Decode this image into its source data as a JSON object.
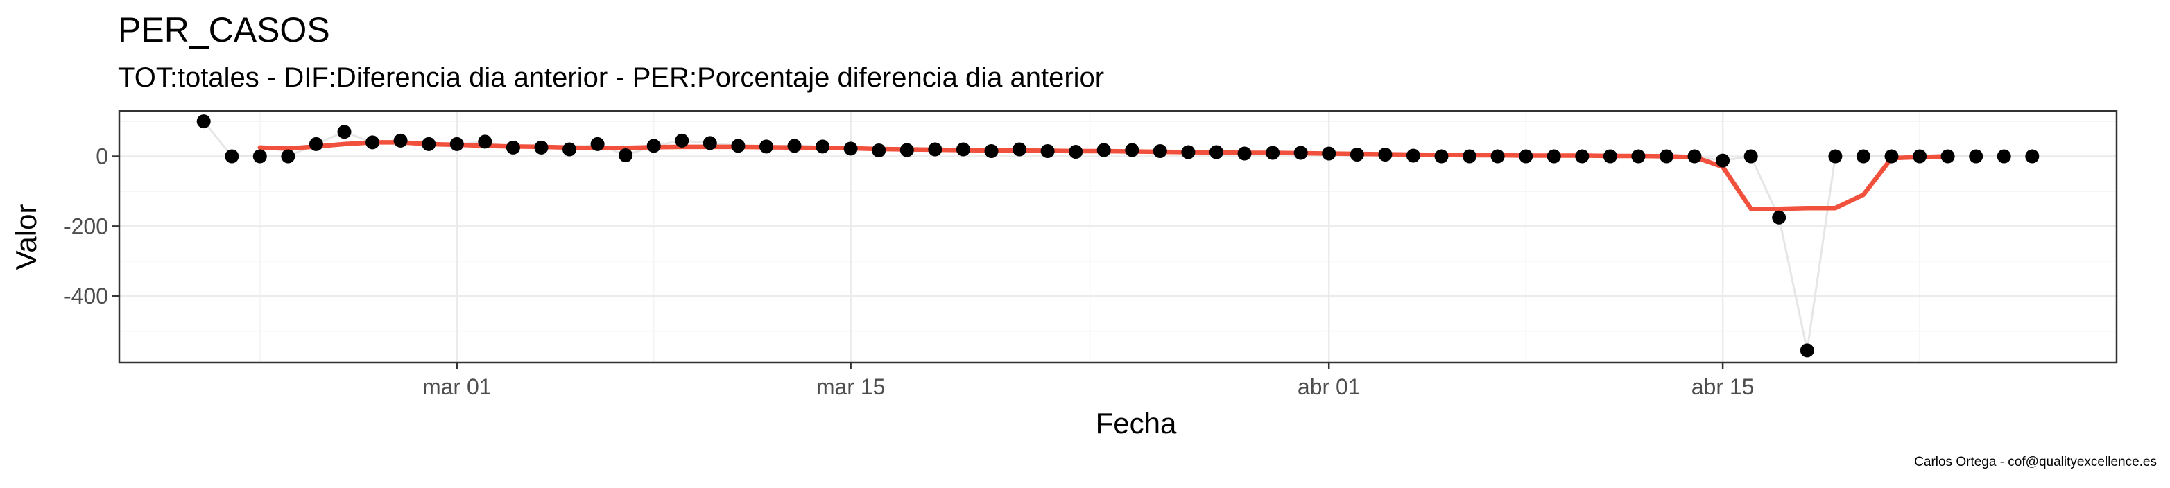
{
  "chart_data": {
    "type": "line",
    "title": "PER_CASOS",
    "subtitle": "TOT:totales - DIF:Diferencia dia anterior - PER:Porcentaje diferencia dia anterior",
    "xlabel": "Fecha",
    "ylabel": "Valor",
    "caption": "Carlos Ortega - cof@qualityexcellence.es",
    "xlim": [
      "2020-02-18",
      "2020-04-29"
    ],
    "ylim": [
      -590,
      130
    ],
    "x_ticks": [
      {
        "date": "2020-03-01",
        "label": "mar 01"
      },
      {
        "date": "2020-03-15",
        "label": "mar 15"
      },
      {
        "date": "2020-04-01",
        "label": "abr 01"
      },
      {
        "date": "2020-04-15",
        "label": "abr 15"
      }
    ],
    "y_ticks": [
      {
        "value": 0,
        "label": "0"
      },
      {
        "value": -200,
        "label": "-200"
      },
      {
        "value": -400,
        "label": "-400"
      }
    ],
    "grid": true,
    "colors": {
      "points": "#000000",
      "connector": "#e6e6e6",
      "smooth": "#f0503c"
    },
    "series": [
      {
        "style": "points",
        "x": [
          "2020-02-21",
          "2020-02-22",
          "2020-02-23",
          "2020-02-24",
          "2020-02-25",
          "2020-02-26",
          "2020-02-27",
          "2020-02-28",
          "2020-02-29",
          "2020-03-01",
          "2020-03-02",
          "2020-03-03",
          "2020-03-04",
          "2020-03-05",
          "2020-03-06",
          "2020-03-07",
          "2020-03-08",
          "2020-03-09",
          "2020-03-10",
          "2020-03-11",
          "2020-03-12",
          "2020-03-13",
          "2020-03-14",
          "2020-03-15",
          "2020-03-16",
          "2020-03-17",
          "2020-03-18",
          "2020-03-19",
          "2020-03-20",
          "2020-03-21",
          "2020-03-22",
          "2020-03-23",
          "2020-03-24",
          "2020-03-25",
          "2020-03-26",
          "2020-03-27",
          "2020-03-28",
          "2020-03-29",
          "2020-03-30",
          "2020-03-31",
          "2020-04-01",
          "2020-04-02",
          "2020-04-03",
          "2020-04-04",
          "2020-04-05",
          "2020-04-06",
          "2020-04-07",
          "2020-04-08",
          "2020-04-09",
          "2020-04-10",
          "2020-04-11",
          "2020-04-12",
          "2020-04-13",
          "2020-04-14",
          "2020-04-15",
          "2020-04-16",
          "2020-04-17",
          "2020-04-18",
          "2020-04-19",
          "2020-04-20",
          "2020-04-21",
          "2020-04-22",
          "2020-04-23",
          "2020-04-24",
          "2020-04-25",
          "2020-04-26"
        ],
        "values": [
          100,
          0,
          0,
          0,
          35,
          70,
          40,
          45,
          35,
          35,
          42,
          25,
          25,
          20,
          35,
          3,
          30,
          45,
          38,
          30,
          28,
          30,
          28,
          22,
          17,
          18,
          20,
          20,
          15,
          20,
          15,
          13,
          18,
          18,
          15,
          12,
          12,
          8,
          10,
          10,
          8,
          5,
          5,
          2,
          0,
          0,
          0,
          0,
          0,
          0,
          0,
          0,
          0,
          0,
          -12,
          0,
          -175,
          -555,
          0,
          0,
          0,
          0,
          0,
          0,
          0,
          0
        ]
      },
      {
        "style": "smooth",
        "x": [
          "2020-02-23",
          "2020-02-24",
          "2020-02-25",
          "2020-02-26",
          "2020-02-27",
          "2020-02-28",
          "2020-02-29",
          "2020-03-01",
          "2020-03-02",
          "2020-03-03",
          "2020-03-04",
          "2020-03-05",
          "2020-03-06",
          "2020-03-07",
          "2020-03-08",
          "2020-03-09",
          "2020-03-10",
          "2020-03-11",
          "2020-03-12",
          "2020-03-13",
          "2020-03-14",
          "2020-03-15",
          "2020-03-16",
          "2020-03-17",
          "2020-03-18",
          "2020-03-19",
          "2020-03-20",
          "2020-03-21",
          "2020-03-22",
          "2020-03-23",
          "2020-03-24",
          "2020-03-25",
          "2020-03-26",
          "2020-03-27",
          "2020-03-28",
          "2020-03-29",
          "2020-03-30",
          "2020-03-31",
          "2020-04-01",
          "2020-04-02",
          "2020-04-03",
          "2020-04-04",
          "2020-04-05",
          "2020-04-06",
          "2020-04-07",
          "2020-04-08",
          "2020-04-09",
          "2020-04-10",
          "2020-04-11",
          "2020-04-12",
          "2020-04-13",
          "2020-04-14",
          "2020-04-15",
          "2020-04-16",
          "2020-04-17",
          "2020-04-18",
          "2020-04-19",
          "2020-04-20",
          "2020-04-21",
          "2020-04-22",
          "2020-04-23"
        ],
        "values": [
          25,
          22,
          28,
          35,
          40,
          40,
          35,
          33,
          30,
          28,
          27,
          25,
          24,
          24,
          26,
          27,
          27,
          27,
          26,
          25,
          24,
          23,
          21,
          20,
          19,
          18,
          17,
          17,
          16,
          15,
          15,
          14,
          13,
          12,
          11,
          10,
          10,
          9,
          8,
          7,
          6,
          5,
          4,
          3,
          3,
          2,
          2,
          2,
          1,
          1,
          0,
          -2,
          -30,
          -150,
          -150,
          -148,
          -148,
          -110,
          -5,
          -2,
          0
        ]
      }
    ]
  }
}
